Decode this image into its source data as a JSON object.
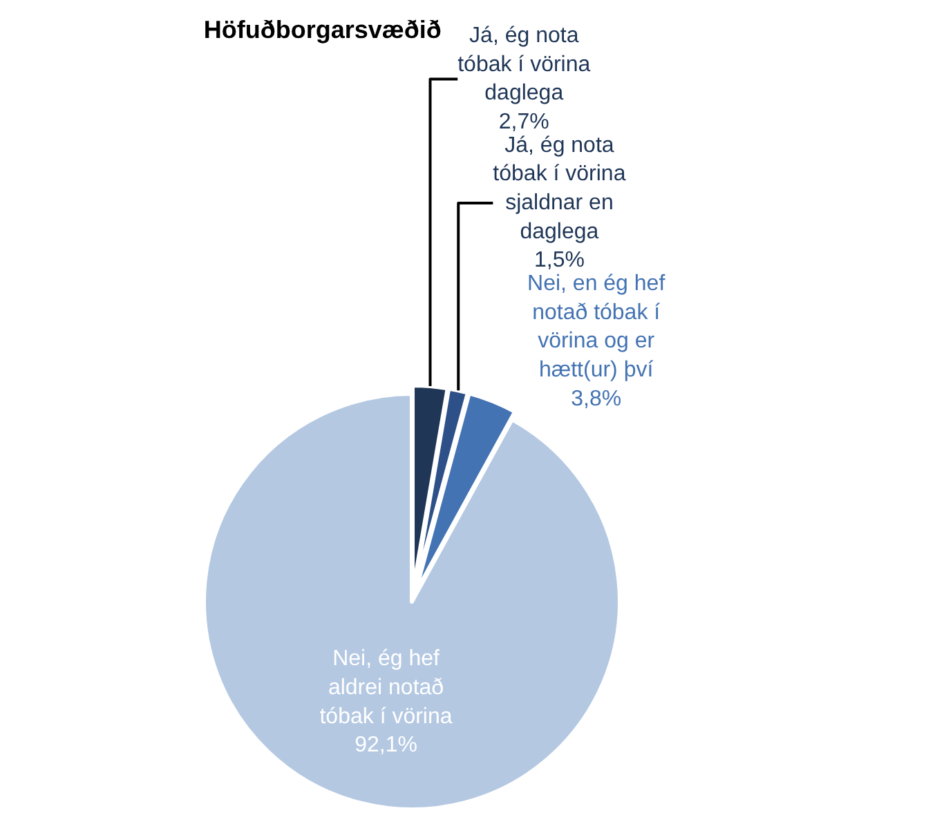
{
  "chart_data": {
    "type": "pie",
    "title": "Höfuðborgarsvæðið",
    "categories": [
      "Já, ég nota tóbak í vörina daglega",
      "Já, ég nota tóbak í vörina sjaldnar en daglega",
      "Nei, en ég hef notað tóbak í vörina og er hætt(ur) því",
      "Nei, ég hef aldrei notað tóbak í vörina"
    ],
    "values": [
      2.7,
      1.5,
      3.8,
      92.1
    ],
    "value_labels": [
      "2,7%",
      "1,5%",
      "3,8%",
      "92,1%"
    ],
    "colors": [
      "#1f3657",
      "#2e5088",
      "#4473b3",
      "#b4c8e2"
    ],
    "legend": false
  }
}
